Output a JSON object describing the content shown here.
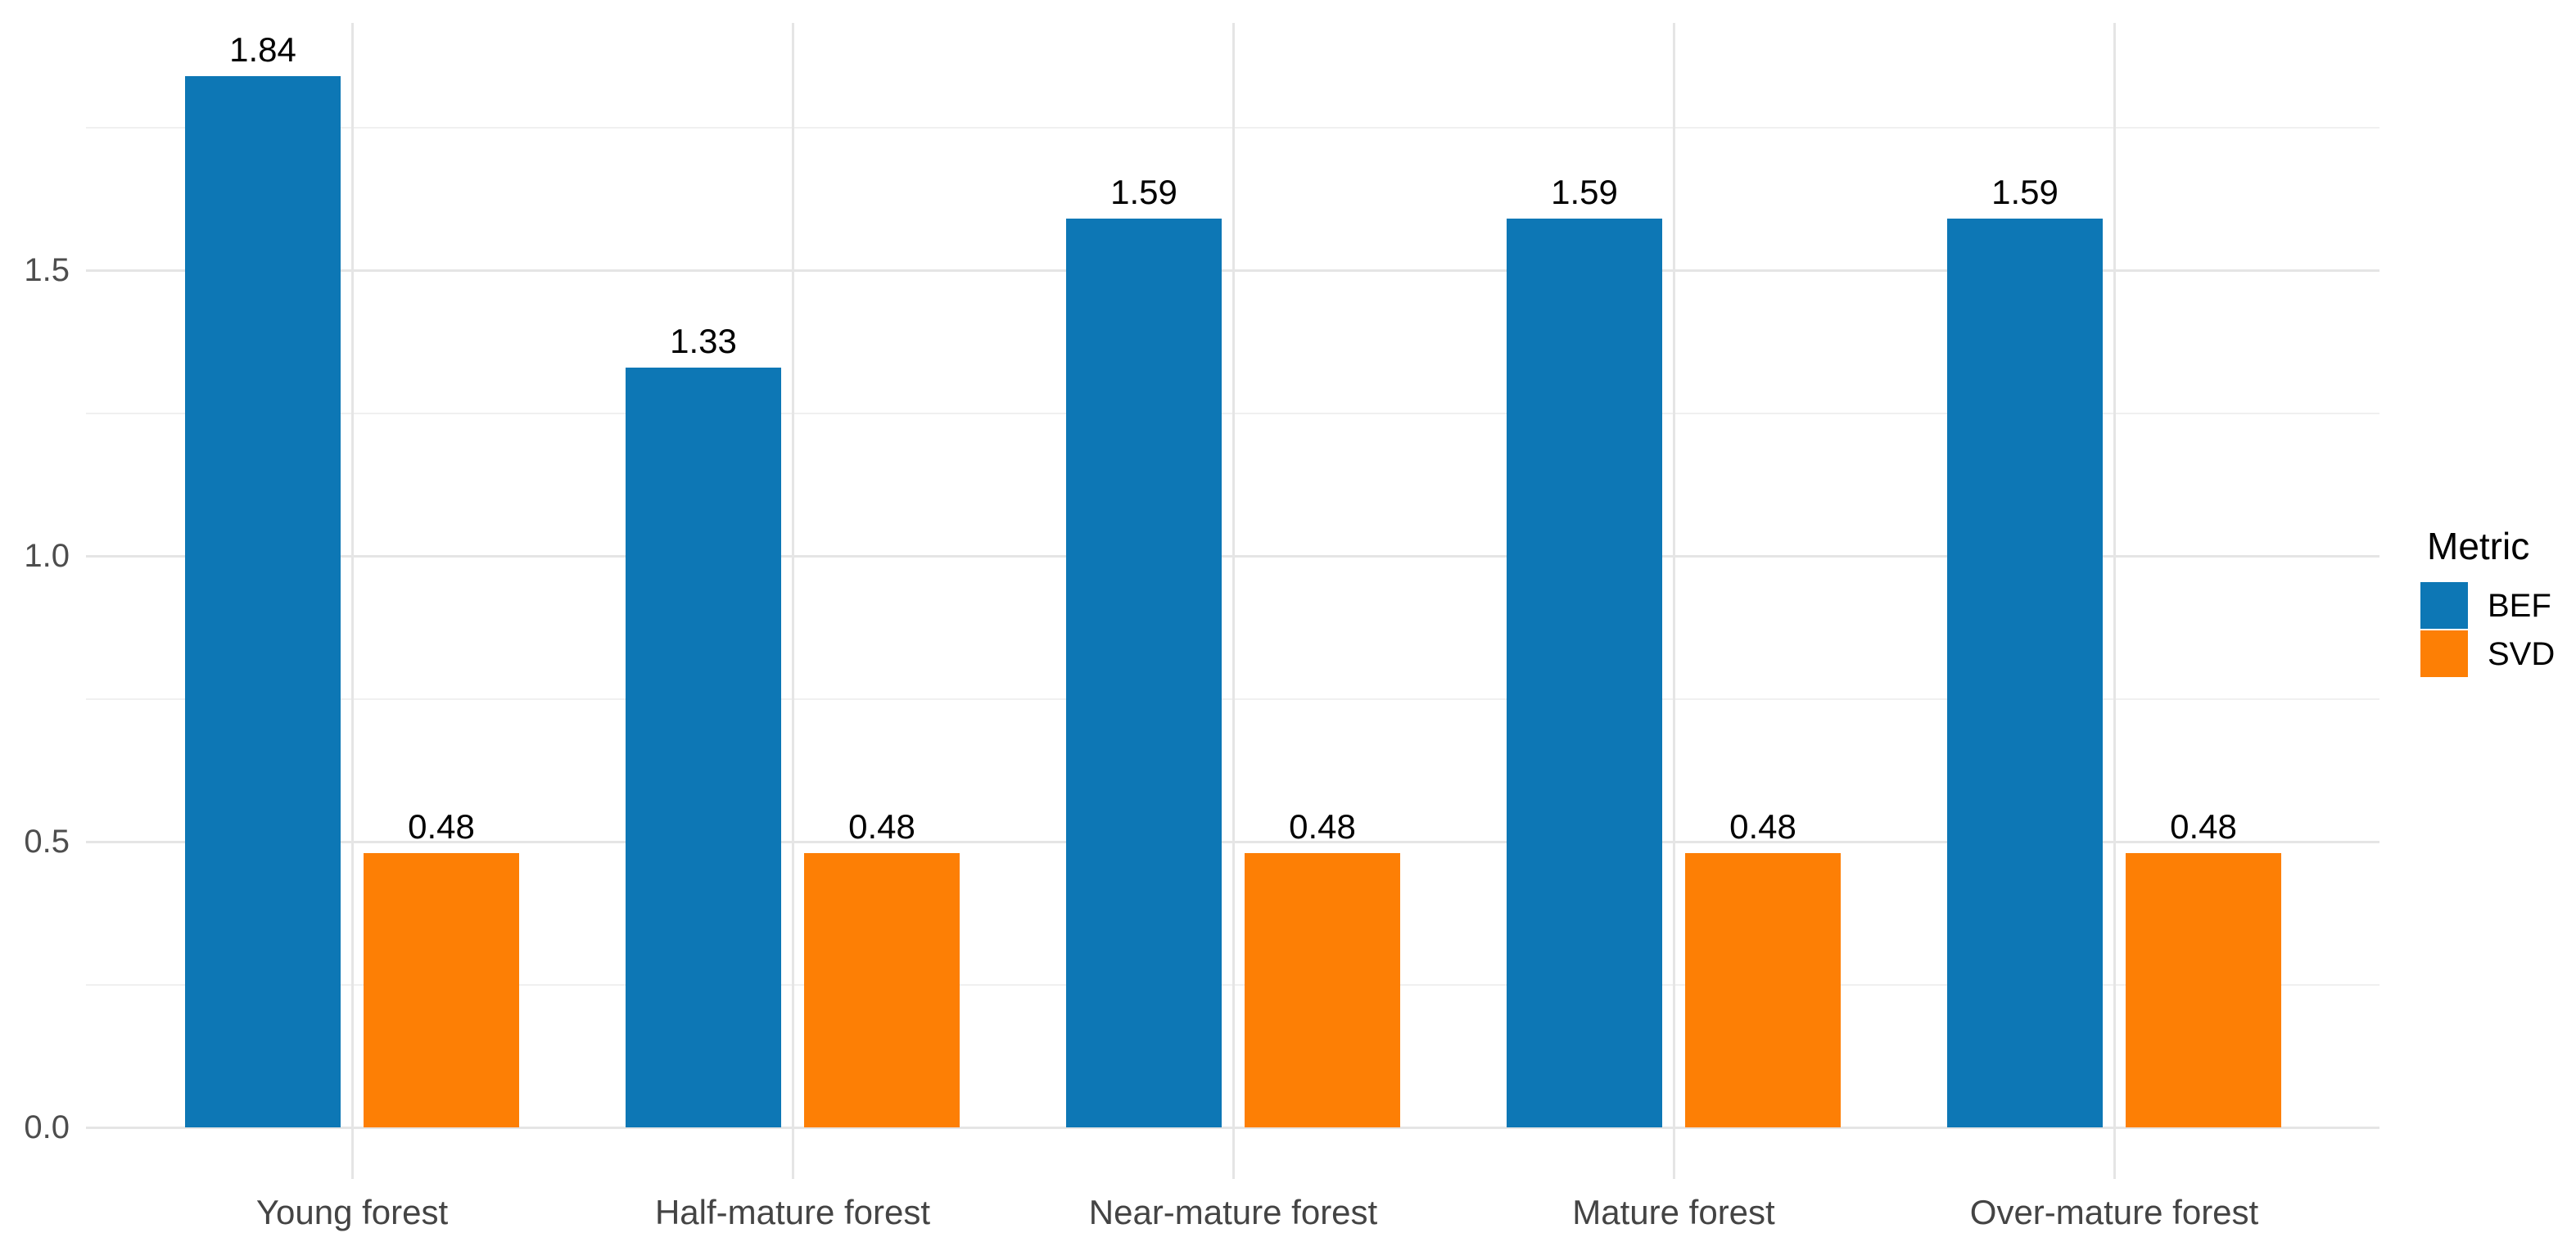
{
  "chart_data": {
    "type": "bar",
    "title": "",
    "xlabel": "",
    "ylabel": "",
    "categories": [
      "Young forest",
      "Half-mature forest",
      "Near-mature forest",
      "Mature forest",
      "Over-mature forest"
    ],
    "series": [
      {
        "name": "BEF",
        "color": "#0d77b5",
        "values": [
          1.84,
          1.33,
          1.59,
          1.59,
          1.59
        ],
        "labels": [
          "1.84",
          "1.33",
          "1.59",
          "1.59",
          "1.59"
        ]
      },
      {
        "name": "SVD",
        "color": "#fd7f05",
        "values": [
          0.48,
          0.48,
          0.48,
          0.48,
          0.48
        ],
        "labels": [
          "0.48",
          "0.48",
          "0.48",
          "0.48",
          "0.48"
        ]
      }
    ],
    "y_axis": {
      "tick_labels": [
        "0.0",
        "0.5",
        "1.0",
        "1.5"
      ],
      "tick_values": [
        0,
        0.5,
        1.0,
        1.5
      ],
      "minor_tick_values": [
        0.25,
        0.75,
        1.25,
        1.75
      ],
      "range": [
        0,
        1.93
      ]
    },
    "grid": {
      "major": true,
      "minor": true,
      "background": "#ffffff",
      "major_color": "#e5e5e5",
      "minor_color": "#f0f0f0"
    },
    "legend": {
      "title": "Metric",
      "position": "right"
    }
  }
}
